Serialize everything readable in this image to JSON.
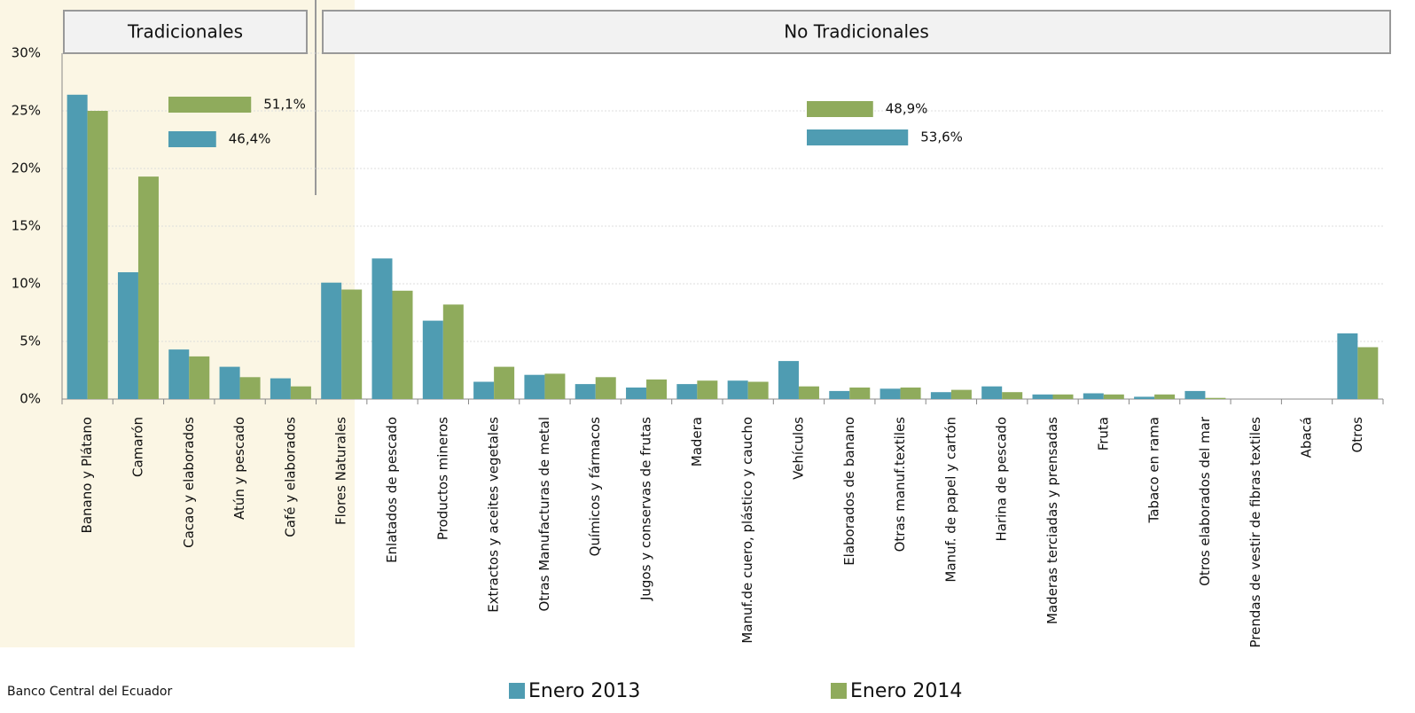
{
  "chart_data": {
    "type": "bar",
    "categories": [
      "Banano y Plátano",
      "Camarón",
      "Cacao y elaborados",
      "Atún y pescado",
      "Café y elaborados",
      "Flores Naturales",
      "Enlatados de pescado",
      "Productos mineros",
      "Extractos y aceites vegetales",
      "Otras Manufacturas de metal",
      "Químicos y fármacos",
      "Jugos y conservas de frutas",
      "Madera",
      "Manuf.de cuero, plástico y caucho",
      "Vehículos",
      "Elaborados de banano",
      "Otras manuf.textiles",
      "Manuf. de papel y cartón",
      "Harina de pescado",
      "Maderas terciadas y prensadas",
      "Fruta",
      "Tabaco en rama",
      "Otros elaborados del mar",
      "Prendas de vestir de fibras textiles",
      "Abacá",
      "Otros"
    ],
    "series": [
      {
        "name": "Enero 2013",
        "color": "#4f9cb2",
        "values": [
          26.4,
          11.0,
          4.3,
          2.8,
          1.8,
          10.1,
          12.2,
          6.8,
          1.5,
          2.1,
          1.3,
          1.0,
          1.3,
          1.6,
          3.3,
          0.7,
          0.9,
          0.6,
          1.1,
          0.4,
          0.5,
          0.2,
          0.7,
          0,
          0,
          5.7
        ]
      },
      {
        "name": "Enero 2014",
        "color": "#8fab5c",
        "values": [
          25.0,
          19.3,
          3.7,
          1.9,
          1.1,
          9.5,
          9.4,
          8.2,
          2.8,
          2.2,
          1.9,
          1.7,
          1.6,
          1.5,
          1.1,
          1.0,
          1.0,
          0.8,
          0.6,
          0.4,
          0.4,
          0.4,
          0.1,
          0,
          0,
          4.5
        ]
      }
    ],
    "groups": [
      {
        "name": "Tradicionales",
        "totals": [
          46.4,
          51.1
        ],
        "total_labels": [
          "46,4%",
          "51,1%"
        ]
      },
      {
        "name": "No Tradicionales",
        "totals": [
          53.6,
          48.9
        ],
        "total_labels": [
          "53,6%",
          "48,9%"
        ]
      }
    ],
    "ylim": [
      0,
      30
    ],
    "yticks": [
      {
        "value": 0,
        "label": "0%"
      },
      {
        "value": 5,
        "label": "5%"
      },
      {
        "value": 10,
        "label": "10%"
      },
      {
        "value": 15,
        "label": "15%"
      },
      {
        "value": 20,
        "label": "20%"
      },
      {
        "value": 25,
        "label": "25%"
      },
      {
        "value": 30,
        "label": "30%"
      }
    ],
    "grid": true,
    "source": "Banco Central del Ecuador"
  }
}
